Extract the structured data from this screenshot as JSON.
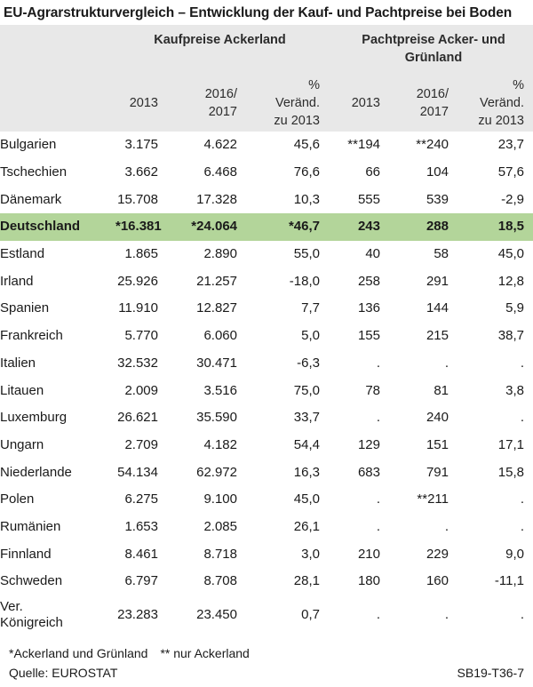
{
  "title": "EU-Agrarstrukturvergleich – Entwicklung der Kauf- und Pachtpreise bei Boden",
  "header": {
    "group_kauf": "Kaufpreise Ackerland",
    "group_pacht_line1": "Pachtpreise Acker- und",
    "group_pacht_line2": "Grünland",
    "col_2013": "2013",
    "col_2016_line1": "2016/",
    "col_2016_line2": "2017",
    "col_change_line1": "%",
    "col_change_line2": "Veränd.",
    "col_change_line3": "zu 2013"
  },
  "rows": [
    {
      "name": "Bulgarien",
      "k2013": "3.175",
      "k2016": "4.622",
      "kchg": "45,6",
      "p2013": "**194",
      "p2016": "**240",
      "pchg": "23,7"
    },
    {
      "name": "Tschechien",
      "k2013": "3.662",
      "k2016": "6.468",
      "kchg": "76,6",
      "p2013": "66",
      "p2016": "104",
      "pchg": "57,6"
    },
    {
      "name": "Dänemark",
      "k2013": "15.708",
      "k2016": "17.328",
      "kchg": "10,3",
      "p2013": "555",
      "p2016": "539",
      "pchg": "-2,9"
    },
    {
      "name": "Deutschland",
      "k2013": "*16.381",
      "k2016": "*24.064",
      "kchg": "*46,7",
      "p2013": "243",
      "p2016": "288",
      "pchg": "18,5"
    },
    {
      "name": "Estland",
      "k2013": "1.865",
      "k2016": "2.890",
      "kchg": "55,0",
      "p2013": "40",
      "p2016": "58",
      "pchg": "45,0"
    },
    {
      "name": "Irland",
      "k2013": "25.926",
      "k2016": "21.257",
      "kchg": "-18,0",
      "p2013": "258",
      "p2016": "291",
      "pchg": "12,8"
    },
    {
      "name": "Spanien",
      "k2013": "11.910",
      "k2016": "12.827",
      "kchg": "7,7",
      "p2013": "136",
      "p2016": "144",
      "pchg": "5,9"
    },
    {
      "name": "Frankreich",
      "k2013": "5.770",
      "k2016": "6.060",
      "kchg": "5,0",
      "p2013": "155",
      "p2016": "215",
      "pchg": "38,7"
    },
    {
      "name": "Italien",
      "k2013": "32.532",
      "k2016": "30.471",
      "kchg": "-6,3",
      "p2013": ".",
      "p2016": ".",
      "pchg": "."
    },
    {
      "name": "Litauen",
      "k2013": "2.009",
      "k2016": "3.516",
      "kchg": "75,0",
      "p2013": "78",
      "p2016": "81",
      "pchg": "3,8"
    },
    {
      "name": "Luxemburg",
      "k2013": "26.621",
      "k2016": "35.590",
      "kchg": "33,7",
      "p2013": ".",
      "p2016": "240",
      "pchg": "."
    },
    {
      "name": "Ungarn",
      "k2013": "2.709",
      "k2016": "4.182",
      "kchg": "54,4",
      "p2013": "129",
      "p2016": "151",
      "pchg": "17,1"
    },
    {
      "name": "Niederlande",
      "k2013": "54.134",
      "k2016": "62.972",
      "kchg": "16,3",
      "p2013": "683",
      "p2016": "791",
      "pchg": "15,8"
    },
    {
      "name": "Polen",
      "k2013": "6.275",
      "k2016": "9.100",
      "kchg": "45,0",
      "p2013": ".",
      "p2016": "**211",
      "pchg": "."
    },
    {
      "name": "Rumänien",
      "k2013": "1.653",
      "k2016": "2.085",
      "kchg": "26,1",
      "p2013": ".",
      "p2016": ".",
      "pchg": "."
    },
    {
      "name": "Finnland",
      "k2013": "8.461",
      "k2016": "8.718",
      "kchg": "3,0",
      "p2013": "210",
      "p2016": "229",
      "pchg": "9,0"
    },
    {
      "name": "Schweden",
      "k2013": "6.797",
      "k2016": "8.708",
      "kchg": "28,1",
      "p2013": "180",
      "p2016": "160",
      "pchg": "-11,1"
    }
  ],
  "last_row": {
    "name_line1": "Ver.",
    "name_line2": "Königreich",
    "k2013": "23.283",
    "k2016": "23.450",
    "kchg": "0,7",
    "p2013": ".",
    "p2016": ".",
    "pchg": "."
  },
  "footnotes": {
    "fn1": "*Ackerland und Grünland",
    "fn2": "** nur Ackerland",
    "source": "Quelle: EUROSTAT",
    "code": "SB19-T36-7"
  },
  "colors": {
    "header_bg": "#e8e8e8",
    "highlight_bg": "#b3d59a"
  }
}
